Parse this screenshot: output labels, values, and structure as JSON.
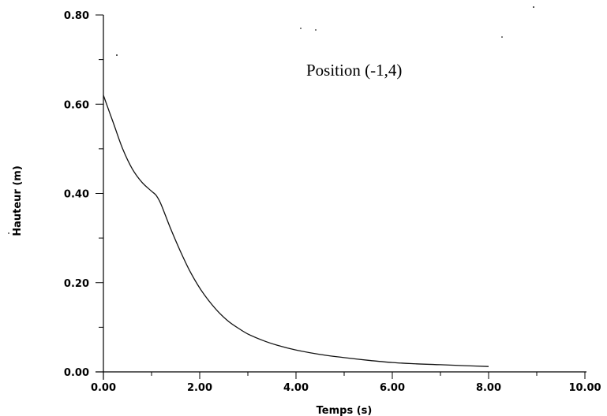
{
  "chart_data": {
    "type": "line",
    "annotation": "Position (-1,4)",
    "xlabel": "Temps (s)",
    "ylabel": "Hauteur (m)",
    "xlim": [
      0,
      10
    ],
    "ylim": [
      0,
      0.8
    ],
    "x_ticks": [
      "0.00",
      "2.00",
      "4.00",
      "6.00",
      "8.00",
      "10.00"
    ],
    "y_ticks": [
      "0.00",
      "0.20",
      "0.40",
      "0.60",
      "0.80"
    ],
    "grid": false,
    "series": [
      {
        "x": [
          0.0,
          0.2,
          0.4,
          0.6,
          0.8,
          1.0,
          1.1,
          1.2,
          1.4,
          1.6,
          1.8,
          2.0,
          2.2,
          2.4,
          2.6,
          2.8,
          3.0,
          3.3,
          3.6,
          4.0,
          4.5,
          5.0,
          5.5,
          6.0,
          6.5,
          7.0,
          7.5,
          8.0
        ],
        "y": [
          0.62,
          0.56,
          0.5,
          0.455,
          0.425,
          0.405,
          0.395,
          0.375,
          0.32,
          0.27,
          0.225,
          0.188,
          0.158,
          0.133,
          0.113,
          0.098,
          0.085,
          0.071,
          0.06,
          0.049,
          0.039,
          0.032,
          0.026,
          0.021,
          0.018,
          0.016,
          0.014,
          0.012
        ]
      }
    ]
  }
}
